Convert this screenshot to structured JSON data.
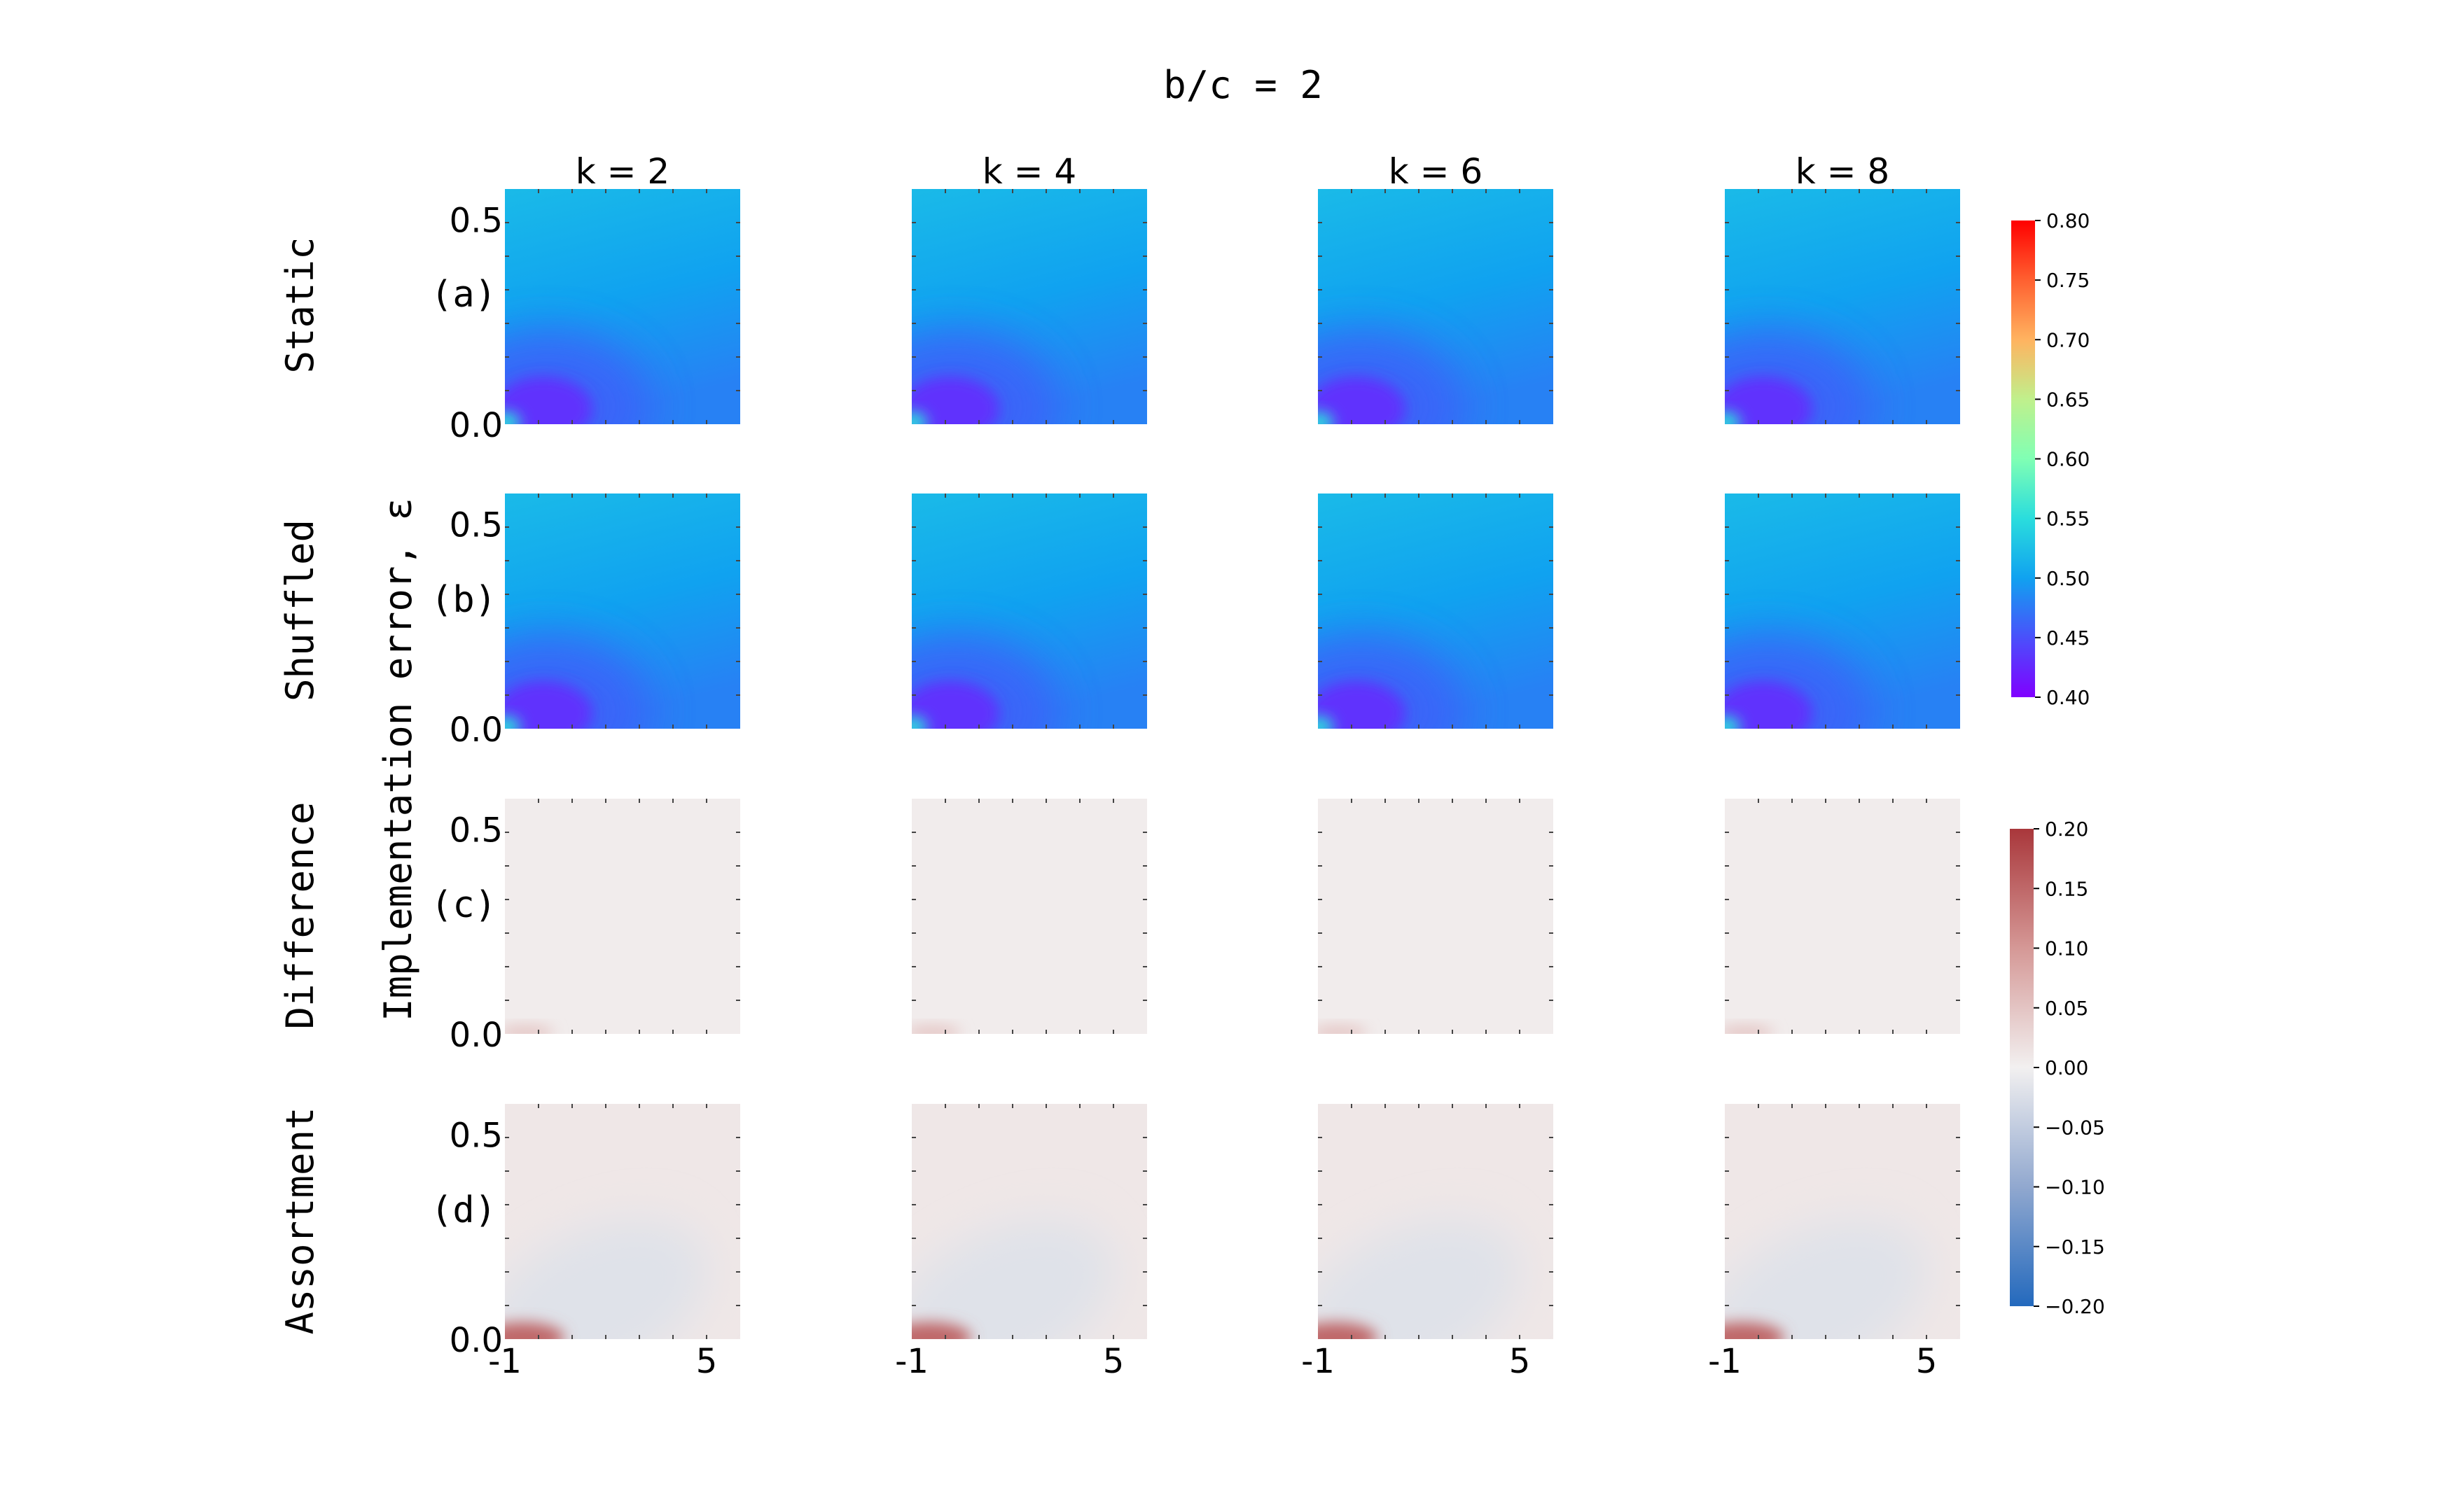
{
  "chart_data": {
    "type": "heatmap",
    "title": "b/c = 2",
    "ylabel": "Implementation error, ε",
    "columns": [
      "k = 2",
      "k = 4",
      "k = 6",
      "k = 8"
    ],
    "rows": [
      {
        "name": "Static",
        "tag": "(a)",
        "colorbar": "main"
      },
      {
        "name": "Shuffled",
        "tag": "(b)",
        "colorbar": "main"
      },
      {
        "name": "Difference",
        "tag": "(c)",
        "colorbar": "diff"
      },
      {
        "name": "Assortment",
        "tag": "(d)",
        "colorbar": "diff"
      }
    ],
    "x_ticks": [
      "-1",
      "5"
    ],
    "y_ticks": [
      "0.0",
      "0.5"
    ],
    "x_range": [
      -1,
      6
    ],
    "y_range": [
      0,
      0.5
    ],
    "colorbars": {
      "main": {
        "colormap": "rainbow",
        "range": [
          0.4,
          0.8
        ],
        "ticks": [
          "0.80",
          "0.75",
          "0.70",
          "0.65",
          "0.60",
          "0.55",
          "0.50",
          "0.45",
          "0.40"
        ]
      },
      "diff": {
        "colormap": "vlag",
        "range": [
          -0.2,
          0.2
        ],
        "ticks": [
          "0.20",
          "0.15",
          "0.10",
          "0.05",
          "0.00",
          "−0.05",
          "−0.10",
          "−0.15",
          "−0.20"
        ]
      }
    },
    "field_summary": {
      "static_shuffled": {
        "min_approx": 0.43,
        "background_approx": 0.5,
        "top_approx": 0.52,
        "corner_high_approx": 0.55
      },
      "difference": {
        "background_approx": 0.005,
        "corner_approx": 0.05
      },
      "assortment": {
        "background_approx": 0.01,
        "trough_approx": -0.02,
        "corner_approx": 0.15
      }
    }
  }
}
